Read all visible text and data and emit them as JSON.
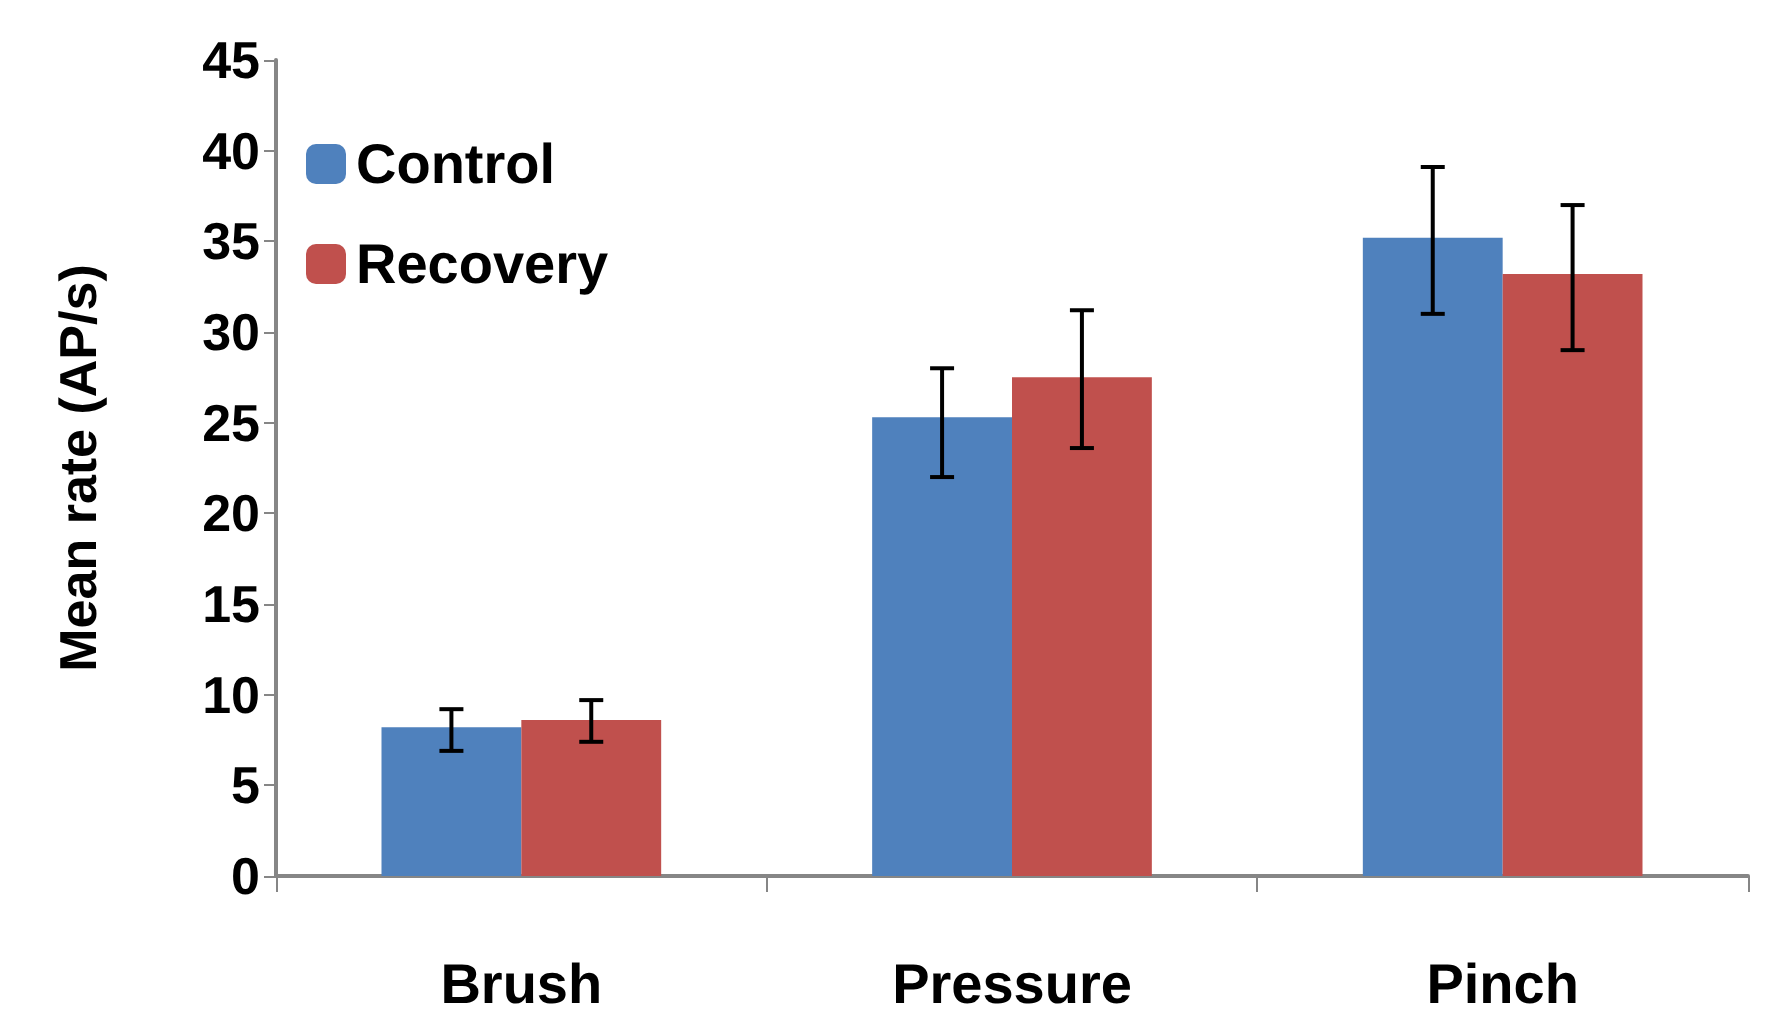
{
  "chart_data": {
    "type": "bar",
    "ylabel": "Mean rate (AP/s)",
    "categories": [
      "Brush",
      "Pressure",
      "Pinch"
    ],
    "series": [
      {
        "name": "Control",
        "color": "#4f81bd",
        "values": [
          8.2,
          25.3,
          35.2
        ],
        "errors": [
          [
            6.9,
            9.2
          ],
          [
            22.0,
            28.0
          ],
          [
            31.0,
            39.1
          ]
        ]
      },
      {
        "name": "Recovery",
        "color": "#c0504d",
        "values": [
          8.6,
          27.5,
          33.2
        ],
        "errors": [
          [
            7.4,
            9.7
          ],
          [
            23.6,
            31.2
          ],
          [
            29.0,
            37.0
          ]
        ]
      }
    ],
    "ylim": [
      0,
      45
    ],
    "yticks": [
      0,
      5,
      10,
      15,
      20,
      25,
      30,
      35,
      40,
      45
    ],
    "grid": false,
    "legend": "top left"
  }
}
